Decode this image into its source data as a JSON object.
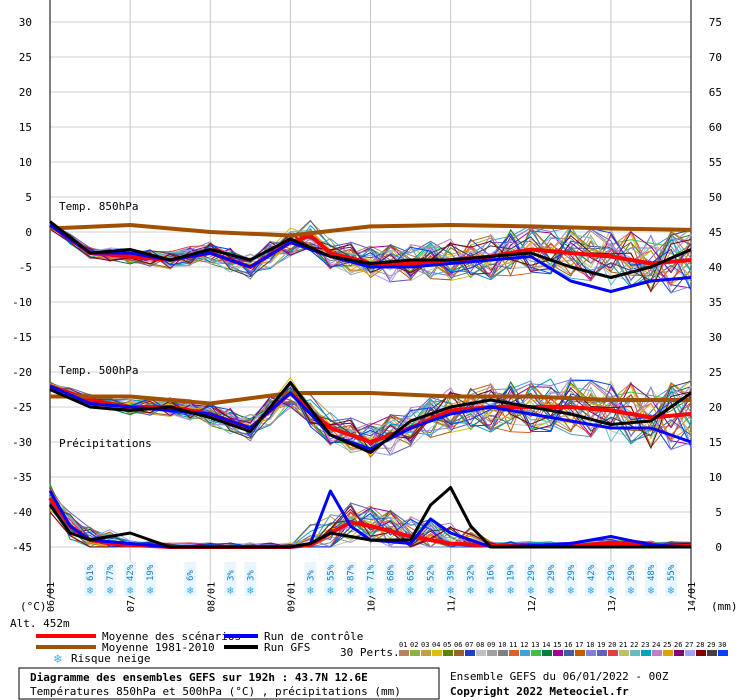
{
  "chart_data": {
    "type": "line",
    "x_dates": [
      "06/01",
      "07/01",
      "08/01",
      "09/01",
      "10/01",
      "11/01",
      "12/01",
      "13/01",
      "14/01"
    ],
    "y_left_ticks": [
      30,
      25,
      20,
      15,
      10,
      5,
      0,
      -5,
      -10,
      -15,
      -20,
      -25,
      -30,
      -35,
      -40,
      -45
    ],
    "y_left_unit": "(°C)",
    "y_right_ticks": [
      75,
      70,
      65,
      60,
      55,
      50,
      45,
      40,
      35,
      30,
      25,
      20,
      15,
      10,
      5,
      0
    ],
    "y_right_unit": "(mm)",
    "ylim_left": [
      -45,
      30
    ],
    "ylim_right": [
      0,
      75
    ],
    "grid": true,
    "section_labels": {
      "t850": "Temp. 850hPa",
      "t500": "Temp. 500hPa",
      "precip": "Précipitations"
    },
    "series_t850": [
      {
        "name": "Moyenne des scénarios",
        "color": "#ff0000",
        "x": [
          0,
          0.5,
          1,
          1.5,
          2,
          2.5,
          3,
          3.25,
          3.5,
          4,
          4.5,
          5,
          5.5,
          6,
          6.5,
          7,
          7.5,
          8
        ],
        "y": [
          1,
          -3,
          -3.5,
          -4,
          -3,
          -5,
          -1.5,
          -0.5,
          -3,
          -4.5,
          -4.5,
          -4,
          -3.5,
          -2.5,
          -3,
          -3.5,
          -4.5,
          -4
        ]
      },
      {
        "name": "Moyenne 1981-2010",
        "color": "#a05000",
        "x": [
          0,
          1,
          2,
          3,
          4,
          5,
          6,
          7,
          8
        ],
        "y": [
          0.5,
          1,
          0,
          -0.5,
          0.8,
          1,
          0.8,
          0.5,
          0.3
        ]
      },
      {
        "name": "Run de contrôle",
        "color": "#0000ff",
        "x": [
          0,
          0.5,
          1,
          1.5,
          2,
          2.5,
          3,
          3.5,
          4,
          4.5,
          5,
          5.5,
          6,
          6.5,
          7,
          7.5,
          8
        ],
        "y": [
          1,
          -3,
          -3,
          -4,
          -3,
          -5,
          -1.5,
          -3.5,
          -5,
          -5,
          -4.5,
          -4,
          -3.5,
          -7,
          -8.5,
          -7,
          -6.5
        ]
      },
      {
        "name": "Run GFS",
        "color": "#000000",
        "x": [
          0,
          0.5,
          1,
          1.5,
          2,
          2.5,
          3,
          3.5,
          4,
          4.5,
          5,
          5.5,
          6,
          6.5,
          7,
          7.5,
          8
        ],
        "y": [
          1.5,
          -3,
          -2.5,
          -4,
          -2.5,
          -4,
          -1,
          -3.5,
          -4.5,
          -4,
          -4,
          -3.5,
          -3,
          -5,
          -6.5,
          -5,
          -2.5
        ]
      }
    ],
    "series_t500": [
      {
        "name": "Moyenne des scénarios",
        "color": "#ff0000",
        "x": [
          0,
          0.5,
          1,
          1.5,
          2,
          2.5,
          3,
          3.5,
          4,
          4.5,
          5,
          5.5,
          6,
          6.5,
          7,
          7.5,
          8
        ],
        "y": [
          -22,
          -24,
          -25,
          -25,
          -26,
          -28,
          -23,
          -28,
          -30,
          -28,
          -25.5,
          -25,
          -25,
          -25,
          -25.5,
          -26.5,
          -26
        ]
      },
      {
        "name": "Moyenne 1981-2010",
        "color": "#a05000",
        "x": [
          0,
          1,
          2,
          3,
          4,
          5,
          6,
          7,
          8
        ],
        "y": [
          -23.5,
          -23.5,
          -24.5,
          -23,
          -23,
          -23.5,
          -23.5,
          -24,
          -24
        ]
      },
      {
        "name": "Run de contrôle",
        "color": "#0000ff",
        "x": [
          0,
          0.5,
          1,
          1.5,
          2,
          2.5,
          3,
          3.5,
          4,
          4.5,
          5,
          5.5,
          6,
          6.5,
          7,
          7.5,
          8
        ],
        "y": [
          -22,
          -24.5,
          -25,
          -25.5,
          -26,
          -28,
          -23,
          -29,
          -31,
          -28,
          -26,
          -25,
          -26,
          -27,
          -28,
          -28,
          -30
        ]
      },
      {
        "name": "Run GFS",
        "color": "#000000",
        "x": [
          0,
          0.5,
          1,
          1.5,
          2,
          2.5,
          3,
          3.5,
          4,
          4.5,
          5,
          5.5,
          6,
          6.5,
          7,
          7.5,
          8
        ],
        "y": [
          -22.5,
          -25,
          -25.5,
          -25,
          -26.5,
          -28.5,
          -21.5,
          -29,
          -31.5,
          -27,
          -25,
          -24,
          -25,
          -26,
          -27.5,
          -27,
          -23
        ]
      }
    ],
    "series_precip": [
      {
        "name": "Moyenne des scénarios",
        "color": "#ff0000",
        "x": [
          0,
          0.25,
          0.5,
          0.75,
          1,
          1.5,
          2,
          2.5,
          3,
          3.25,
          3.5,
          3.75,
          4,
          4.5,
          5,
          5.5,
          6,
          6.5,
          7,
          7.5,
          8
        ],
        "y": [
          7,
          3,
          1,
          0.5,
          0.3,
          0,
          0,
          0,
          0,
          0.3,
          2,
          3.5,
          3,
          1.5,
          0.5,
          0.2,
          0.2,
          0.1,
          0.6,
          0.3,
          0.1
        ]
      },
      {
        "name": "Run de contrôle",
        "color": "#0000ff",
        "x": [
          0,
          0.25,
          0.5,
          1,
          1.5,
          2,
          3,
          3.25,
          3.5,
          3.75,
          4,
          4.5,
          4.75,
          5,
          5.5,
          6,
          6.5,
          7,
          7.5,
          8
        ],
        "y": [
          8,
          3,
          1,
          0.5,
          0,
          0,
          0,
          0.5,
          8,
          3,
          1,
          0.5,
          4,
          2,
          0,
          0.2,
          0.5,
          1.5,
          0.3,
          0
        ]
      },
      {
        "name": "Run GFS",
        "color": "#000000",
        "x": [
          0,
          0.25,
          0.5,
          1,
          1.5,
          2,
          3,
          3.25,
          3.5,
          4,
          4.5,
          4.75,
          5,
          5.25,
          5.5,
          6,
          7,
          8
        ],
        "y": [
          6,
          2,
          1,
          2,
          0,
          0,
          0,
          0.5,
          2,
          1,
          1,
          6,
          8.5,
          3,
          0,
          0,
          0,
          0
        ]
      }
    ],
    "snow_risk": [
      {
        "x": 0.5,
        "label": "61%"
      },
      {
        "x": 0.75,
        "label": "77%"
      },
      {
        "x": 1,
        "label": "42%"
      },
      {
        "x": 1.25,
        "label": "19%"
      },
      {
        "x": 1.75,
        "label": "6%"
      },
      {
        "x": 2.25,
        "label": "3%"
      },
      {
        "x": 2.5,
        "label": "3%"
      },
      {
        "x": 3.25,
        "label": "3%"
      },
      {
        "x": 3.5,
        "label": "55%"
      },
      {
        "x": 3.75,
        "label": "87%"
      },
      {
        "x": 4,
        "label": "71%"
      },
      {
        "x": 4.25,
        "label": "68%"
      },
      {
        "x": 4.5,
        "label": "65%"
      },
      {
        "x": 4.75,
        "label": "52%"
      },
      {
        "x": 5,
        "label": "39%"
      },
      {
        "x": 5.25,
        "label": "32%"
      },
      {
        "x": 5.5,
        "label": "16%"
      },
      {
        "x": 5.75,
        "label": "19%"
      },
      {
        "x": 6,
        "label": "29%"
      },
      {
        "x": 6.25,
        "label": "29%"
      },
      {
        "x": 6.5,
        "label": "29%"
      },
      {
        "x": 6.75,
        "label": "42%"
      },
      {
        "x": 7,
        "label": "29%"
      },
      {
        "x": 7.25,
        "label": "29%"
      },
      {
        "x": 7.5,
        "label": "48%"
      },
      {
        "x": 7.75,
        "label": "55%"
      }
    ]
  },
  "labels": {
    "alt": "Alt. 452m",
    "unit_left": "(°C)",
    "unit_right": "(mm)"
  },
  "legend": {
    "mean": "Moyenne des scénarios",
    "clim": "Moyenne 1981-2010",
    "snow": "Risque neige",
    "control": "Run de contrôle",
    "gfs": "Run GFS",
    "perts": "30 Perts.",
    "pert_numbers": [
      "01",
      "02",
      "03",
      "04",
      "05",
      "06",
      "07",
      "08",
      "09",
      "10",
      "11",
      "12",
      "13",
      "14",
      "15",
      "16",
      "17",
      "18",
      "19",
      "20",
      "21",
      "22",
      "23",
      "24",
      "25",
      "26",
      "27",
      "28",
      "29",
      "30"
    ],
    "pert_colors": [
      "#c08060",
      "#90b040",
      "#c0a040",
      "#e0c000",
      "#608000",
      "#a06020",
      "#2040c0",
      "#c0c0c0",
      "#a0a0a0",
      "#808080",
      "#e06020",
      "#40a0e0",
      "#40c040",
      "#008040",
      "#a000a0",
      "#4060a0",
      "#c06000",
      "#8080e0",
      "#6060c0",
      "#e04040",
      "#c0c060",
      "#60c0c0",
      "#00a0c0",
      "#c080c0",
      "#e0a000",
      "#800080",
      "#a0a0ff",
      "#800000",
      "#404040",
      "#0040ff"
    ]
  },
  "footer": {
    "title": "Diagramme des ensembles GEFS sur 192h : 43.7N 12.6E",
    "subtitle": "Températures 850hPa et 500hPa (°C) , précipitations (mm)",
    "run": "Ensemble GEFS du 06/01/2022 - 00Z",
    "copyright": "Copyright 2022 Meteociel.fr"
  }
}
